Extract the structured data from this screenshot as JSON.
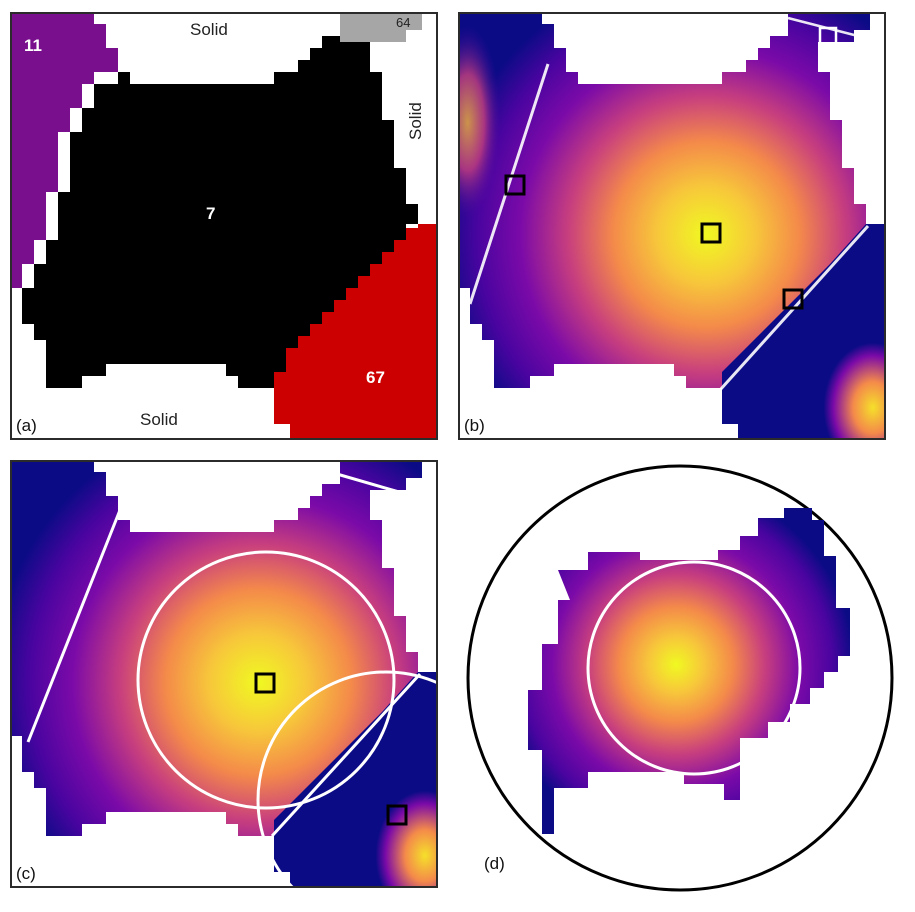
{
  "panels": [
    {
      "id": "a",
      "tag": "(a)"
    },
    {
      "id": "b",
      "tag": "(b)"
    },
    {
      "id": "c",
      "tag": "(c)"
    },
    {
      "id": "d",
      "tag": "(d)"
    }
  ],
  "panel_a": {
    "solid_top": "Solid",
    "solid_right": "Solid",
    "solid_bottom": "Solid",
    "region_7": "7",
    "region_11": "11",
    "region_67": "67",
    "region_64": "64",
    "colors": {
      "region_7": "#000000",
      "region_11": "#7a0f8e",
      "region_67": "#cc0000",
      "region_64": "#a6a6a6",
      "solid": "#ffffff"
    }
  },
  "colormap": [
    "#0c0b86",
    "#4a04a0",
    "#7b0aa8",
    "#a42596",
    "#c83f7e",
    "#e2606a",
    "#f48a4a",
    "#fbb53b",
    "#f5e02a",
    "#f0f921"
  ],
  "overlay_color": "#ffffff",
  "marker_color": "#000000"
}
